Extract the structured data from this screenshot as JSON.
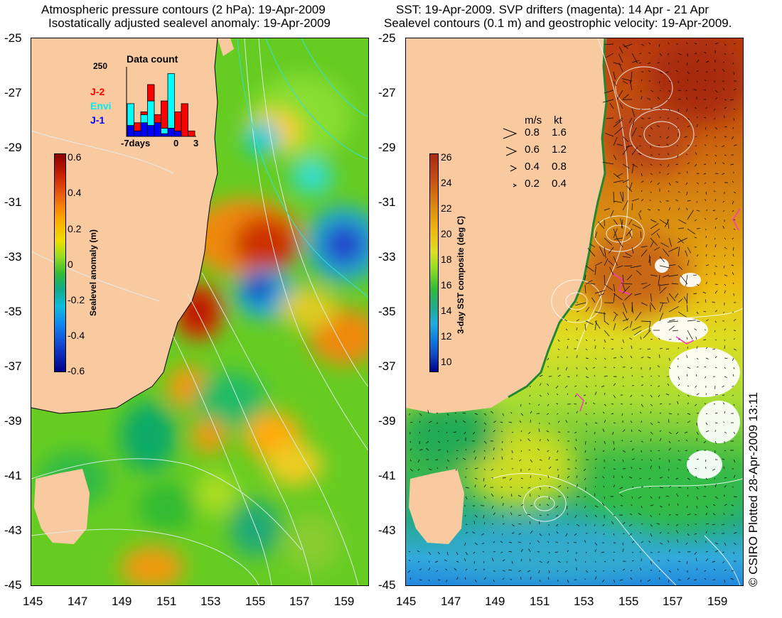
{
  "left_panel": {
    "title_line1": "Atmospheric pressure contours (2 hPa): 19-Apr-2009",
    "title_line2": "Isostatically adjusted sealevel anomaly: 19-Apr-2009",
    "y_ticks": [
      "-25",
      "-27",
      "-29",
      "-31",
      "-33",
      "-35",
      "-37",
      "-39",
      "-41",
      "-43",
      "-45"
    ],
    "x_ticks": [
      "145",
      "147",
      "149",
      "151",
      "153",
      "155",
      "157",
      "159"
    ],
    "colorbar": {
      "label": "Sealevel anomaly (m)",
      "ticks": [
        "0.6",
        "0.4",
        "0.2",
        "0",
        "-0.2",
        "-0.4",
        "-0.6"
      ],
      "range": [
        -0.6,
        0.6
      ]
    },
    "data_count": {
      "title": "Data count",
      "y_label": "250",
      "x_ticks": [
        "-7days",
        "0",
        "3"
      ],
      "legend": [
        {
          "name": "J-2",
          "color": "#ff0000"
        },
        {
          "name": "Envi",
          "color": "#00ffff"
        },
        {
          "name": "J-1",
          "color": "#0000ff"
        }
      ],
      "bars": [
        {
          "day": -7,
          "J-1": 40,
          "Envi": 80,
          "J-2": 0
        },
        {
          "day": -6,
          "J-1": 20,
          "Envi": 0,
          "J-2": 30
        },
        {
          "day": -5,
          "J-1": 50,
          "Envi": 30,
          "J-2": 10
        },
        {
          "day": -4,
          "J-1": 40,
          "Envi": 90,
          "J-2": 60
        },
        {
          "day": -3,
          "J-1": 50,
          "Envi": 0,
          "J-2": 30
        },
        {
          "day": -2,
          "J-1": 10,
          "Envi": 20,
          "J-2": 100
        },
        {
          "day": -1,
          "J-1": 30,
          "Envi": 200,
          "J-2": 0
        },
        {
          "day": 0,
          "J-1": 20,
          "Envi": 0,
          "J-2": 70
        },
        {
          "day": 1,
          "J-1": 0,
          "Envi": 0,
          "J-2": 120
        },
        {
          "day": 2,
          "J-1": 0,
          "Envi": 0,
          "J-2": 20
        }
      ]
    }
  },
  "right_panel": {
    "title_line1": "SST: 19-Apr-2009. SVP drifters (magenta): 14 Apr - 21 Apr",
    "title_line2": "Sealevel contours (0.1 m) and geostrophic velocity: 19-Apr-2009.",
    "y_ticks": [
      "-25",
      "-27",
      "-29",
      "-31",
      "-33",
      "-35",
      "-37",
      "-39",
      "-41",
      "-43",
      "-45"
    ],
    "x_ticks": [
      "145",
      "147",
      "149",
      "151",
      "153",
      "155",
      "157",
      "159"
    ],
    "colorbar": {
      "label": "3-day SST composite (deg C)",
      "ticks": [
        "26",
        "24",
        "22",
        "20",
        "18",
        "16",
        "14",
        "12",
        "10"
      ],
      "range": [
        9,
        26
      ]
    },
    "velocity_legend": {
      "header_ms": "m/s",
      "header_kt": "kt",
      "rows": [
        {
          "ms": "0.8",
          "kt": "1.6"
        },
        {
          "ms": "0.6",
          "kt": "1.2"
        },
        {
          "ms": "0.4",
          "kt": "0.8"
        },
        {
          "ms": "0.2",
          "kt": "0.4"
        }
      ]
    }
  },
  "credit": "© CSIRO Plotted 28-Apr-2009 13:11",
  "colors": {
    "land": "#f9c9a0",
    "background": "#ffffff",
    "contour_left": "#e0f0f0",
    "contour_right": "#ffffff"
  }
}
